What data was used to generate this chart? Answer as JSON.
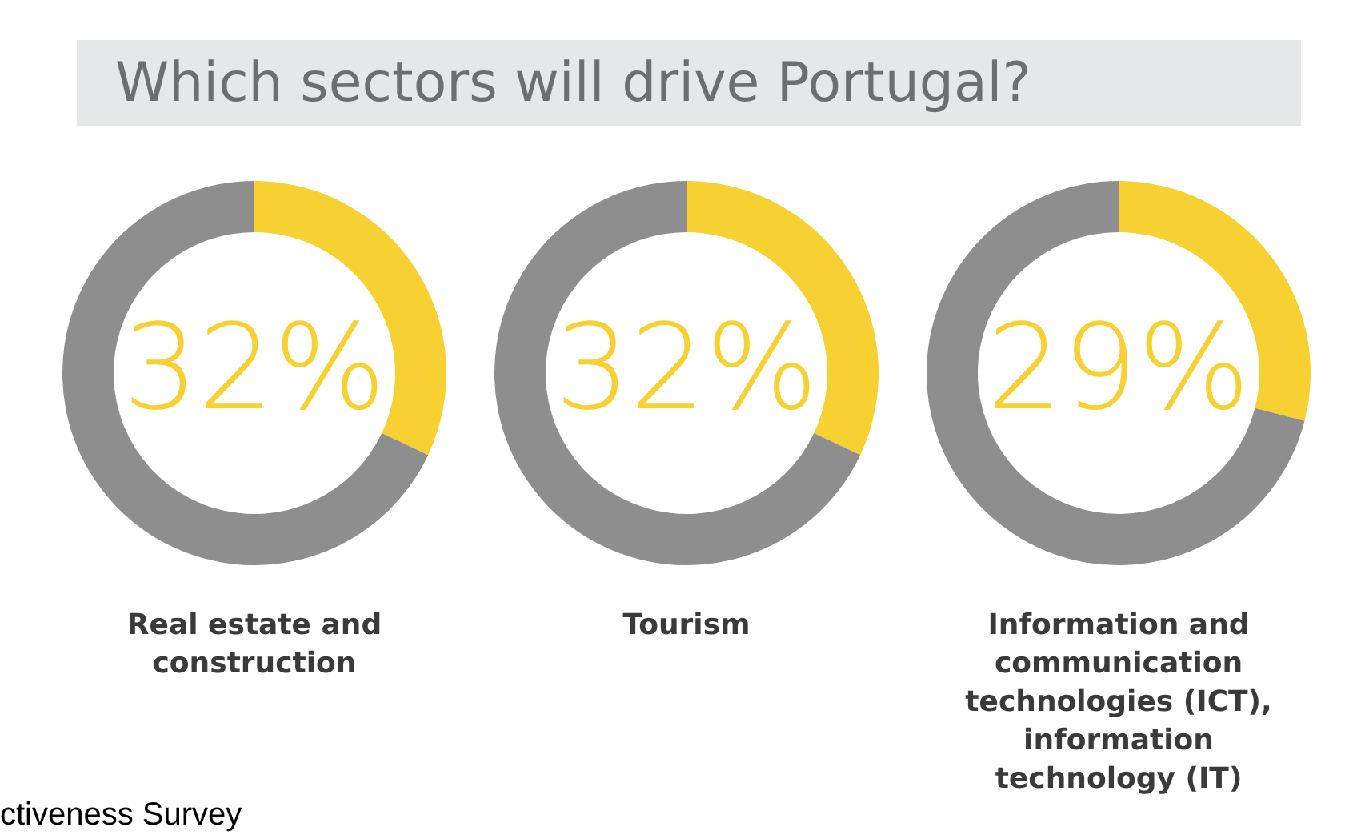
{
  "chart_data": [
    {
      "type": "donut",
      "title": "Which sectors will drive Portugal?",
      "xlabel": "Real estate and construction",
      "categories": [
        null,
        null
      ],
      "values": [
        32,
        68
      ],
      "colors": [
        "#f7d031",
        "#8e8e8e"
      ],
      "value_labels": [
        "32%",
        null
      ],
      "annotations": [
        "ctiveness Survey"
      ]
    },
    {
      "type": "donut",
      "xlabel": "Tourism",
      "categories": [
        null,
        null
      ],
      "values": [
        32,
        68
      ],
      "colors": [
        "#f7d031",
        "#8e8e8e"
      ],
      "value_labels": [
        "32%",
        null
      ]
    },
    {
      "type": "donut",
      "xlabel": "Information and communication technologies (ICT), information technology (IT)",
      "categories": [
        null,
        null
      ],
      "values": [
        29,
        71
      ],
      "colors": [
        "#f7d031",
        "#8e8e8e"
      ],
      "value_labels": [
        "29%",
        null
      ]
    }
  ]
}
